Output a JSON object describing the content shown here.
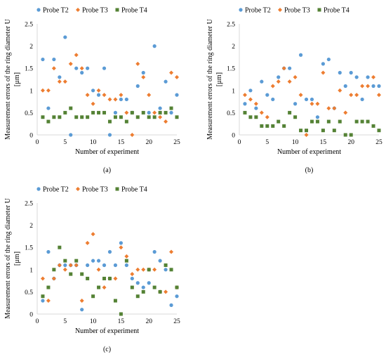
{
  "chart_data": [
    {
      "id": "a",
      "type": "scatter",
      "caption": "(a)",
      "xlabel": "Number of experiment",
      "ylabel_lines": [
        "Measurement errors of the ring diameter U",
        "[µm]"
      ],
      "xlim": [
        0,
        25
      ],
      "ylim": [
        0,
        2.5
      ],
      "xticks": [
        "0",
        "5",
        "10",
        "15",
        "20",
        "25"
      ],
      "yticks": [
        "0",
        "0.5",
        "1",
        "1.5",
        "2",
        "2.5"
      ],
      "grid": "none",
      "legend_position": "top",
      "series": [
        {
          "name": "Probe T2",
          "color": "#5b9bd5",
          "marker": "circle",
          "x": [
            1,
            2,
            3,
            4,
            5,
            6,
            7,
            8,
            9,
            10,
            11,
            12,
            13,
            14,
            15,
            16,
            17,
            18,
            19,
            20,
            21,
            22,
            23,
            24,
            25
          ],
          "y": [
            1.7,
            0.6,
            1.7,
            1.3,
            2.2,
            0.0,
            1.5,
            1.4,
            1.5,
            1.0,
            0.9,
            1.5,
            0.0,
            0.5,
            0.8,
            0.8,
            0.5,
            1.1,
            1.4,
            0.5,
            2.0,
            0.6,
            1.2,
            0.5,
            0.9
          ]
        },
        {
          "name": "Probe T3",
          "color": "#ed7d31",
          "marker": "diamond",
          "x": [
            1,
            2,
            3,
            4,
            5,
            6,
            7,
            8,
            9,
            10,
            11,
            12,
            13,
            14,
            15,
            16,
            17,
            18,
            19,
            20,
            21,
            22,
            23,
            24,
            25
          ],
          "y": [
            1.0,
            1.0,
            1.5,
            1.2,
            1.2,
            1.6,
            1.8,
            1.5,
            0.9,
            0.7,
            1.0,
            0.9,
            0.8,
            0.8,
            0.9,
            0.5,
            0.0,
            1.6,
            1.3,
            0.9,
            0.5,
            0.4,
            0.3,
            1.4,
            1.3
          ]
        },
        {
          "name": "Probe T4",
          "color": "#548235",
          "marker": "square",
          "x": [
            1,
            2,
            3,
            4,
            5,
            6,
            7,
            8,
            9,
            10,
            11,
            12,
            13,
            14,
            15,
            16,
            17,
            18,
            19,
            20,
            21,
            22,
            23,
            24,
            25
          ],
          "y": [
            0.4,
            0.3,
            0.4,
            0.4,
            0.5,
            0.6,
            0.4,
            0.4,
            0.4,
            0.5,
            0.5,
            0.5,
            0.3,
            0.4,
            0.4,
            0.3,
            0.5,
            0.4,
            0.5,
            0.4,
            0.4,
            0.5,
            0.5,
            0.6,
            0.4
          ]
        }
      ]
    },
    {
      "id": "b",
      "type": "scatter",
      "caption": "(b)",
      "xlabel": "Number of experiment",
      "ylabel_lines": [
        "Measurement errors of the ring diameter U",
        "[µm]"
      ],
      "xlim": [
        0,
        25
      ],
      "ylim": [
        0,
        2.5
      ],
      "xticks": [
        "0",
        "5",
        "10",
        "15",
        "20",
        "25"
      ],
      "yticks": [
        "0",
        "0.5",
        "1",
        "1.5",
        "2",
        "2.5"
      ],
      "grid": "none",
      "legend_position": "top",
      "series": [
        {
          "name": "Probe T2",
          "color": "#5b9bd5",
          "marker": "circle",
          "x": [
            1,
            2,
            3,
            4,
            5,
            6,
            7,
            8,
            9,
            10,
            11,
            12,
            13,
            14,
            15,
            16,
            17,
            18,
            19,
            20,
            21,
            22,
            23,
            24,
            25
          ],
          "y": [
            0.7,
            1.0,
            0.6,
            1.2,
            0.9,
            0.8,
            1.3,
            1.5,
            1.5,
            0.7,
            1.8,
            0.8,
            0.8,
            0.4,
            1.6,
            1.7,
            0.6,
            1.4,
            1.1,
            1.4,
            1.3,
            0.8,
            1.3,
            1.1,
            1.1
          ]
        },
        {
          "name": "Probe T3",
          "color": "#ed7d31",
          "marker": "diamond",
          "x": [
            1,
            2,
            3,
            4,
            5,
            6,
            7,
            8,
            9,
            10,
            11,
            12,
            13,
            14,
            15,
            16,
            17,
            18,
            19,
            20,
            21,
            22,
            23,
            24,
            25
          ],
          "y": [
            0.9,
            0.8,
            0.7,
            0.5,
            0.4,
            1.1,
            1.2,
            1.5,
            1.2,
            1.3,
            0.9,
            0.0,
            0.7,
            0.7,
            1.4,
            0.6,
            0.6,
            1.0,
            0.5,
            0.9,
            0.9,
            1.1,
            1.1,
            1.3,
            0.9
          ]
        },
        {
          "name": "Probe T4",
          "color": "#548235",
          "marker": "square",
          "x": [
            1,
            2,
            3,
            4,
            5,
            6,
            7,
            8,
            9,
            10,
            11,
            12,
            13,
            14,
            15,
            16,
            17,
            18,
            19,
            20,
            21,
            22,
            23,
            24,
            25
          ],
          "y": [
            0.5,
            0.4,
            0.4,
            0.2,
            0.2,
            0.2,
            0.3,
            0.2,
            0.5,
            0.4,
            0.1,
            0.1,
            0.3,
            0.3,
            0.1,
            0.3,
            0.1,
            0.3,
            0.0,
            0.0,
            0.3,
            0.3,
            0.3,
            0.2,
            0.1
          ]
        }
      ]
    },
    {
      "id": "c",
      "type": "scatter",
      "caption": "(c)",
      "xlabel": "Number of experiment",
      "ylabel_lines": [
        "Measurement errors of the ring diameter U",
        "[µm]"
      ],
      "xlim": [
        0,
        25
      ],
      "ylim": [
        0,
        2.5
      ],
      "xticks": [
        "0",
        "5",
        "10",
        "15",
        "20",
        "25"
      ],
      "yticks": [
        "0",
        "0.5",
        "1",
        "1.5",
        "2",
        "2.5"
      ],
      "grid": "none",
      "legend_position": "top",
      "series": [
        {
          "name": "Probe T2",
          "color": "#5b9bd5",
          "marker": "circle",
          "x": [
            1,
            2,
            3,
            4,
            5,
            6,
            7,
            8,
            9,
            10,
            11,
            12,
            13,
            14,
            15,
            16,
            17,
            18,
            19,
            20,
            21,
            22,
            23,
            24,
            25
          ],
          "y": [
            0.3,
            1.4,
            0.8,
            1.1,
            1.1,
            1.1,
            1.1,
            0.1,
            1.1,
            1.2,
            1.2,
            1.1,
            1.4,
            1.1,
            1.6,
            1.1,
            0.8,
            0.7,
            0.6,
            0.7,
            1.4,
            1.2,
            1.0,
            0.2,
            0.4
          ]
        },
        {
          "name": "Probe T3",
          "color": "#ed7d31",
          "marker": "diamond",
          "x": [
            1,
            2,
            3,
            4,
            5,
            6,
            7,
            8,
            9,
            10,
            11,
            12,
            13,
            14,
            15,
            16,
            17,
            18,
            19,
            20,
            21,
            22,
            23,
            24,
            25
          ],
          "y": [
            0.8,
            0.3,
            0.8,
            1.1,
            1.0,
            1.1,
            1.1,
            0.3,
            1.6,
            1.8,
            1.0,
            0.6,
            0.8,
            0.8,
            1.5,
            1.3,
            0.9,
            1.0,
            1.0,
            1.0,
            1.0,
            0.5,
            0.5,
            1.4,
            0.6
          ]
        },
        {
          "name": "Probe T4",
          "color": "#548235",
          "marker": "square",
          "x": [
            1,
            2,
            3,
            4,
            5,
            6,
            7,
            8,
            9,
            10,
            11,
            12,
            13,
            14,
            15,
            16,
            17,
            18,
            19,
            20,
            21,
            22,
            23,
            24,
            25
          ],
          "y": [
            0.4,
            0.6,
            1.0,
            1.5,
            1.2,
            0.9,
            1.2,
            0.9,
            0.8,
            0.4,
            0.6,
            0.8,
            0.8,
            0.3,
            0.0,
            1.2,
            0.6,
            0.4,
            0.5,
            1.0,
            0.6,
            0.5,
            1.1,
            1.0,
            0.6
          ]
        }
      ]
    }
  ]
}
